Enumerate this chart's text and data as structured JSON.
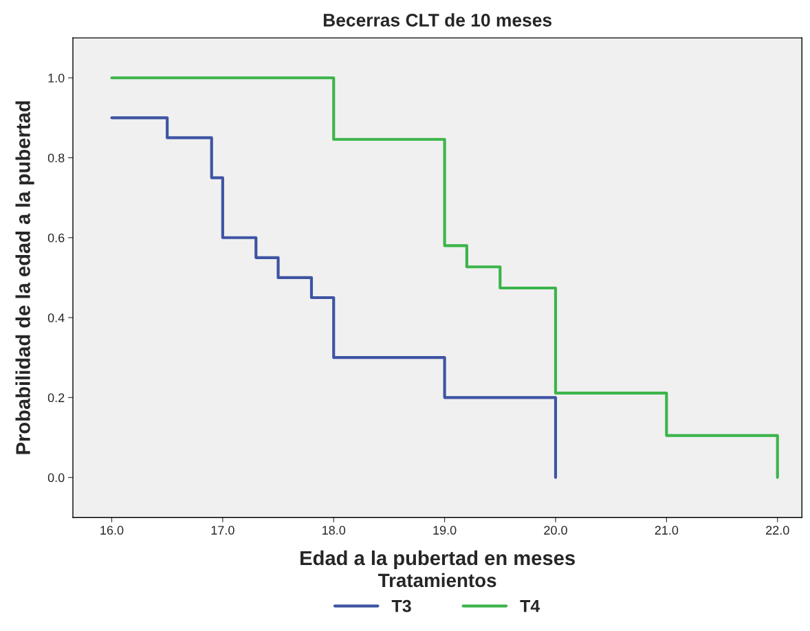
{
  "chart_data": {
    "type": "step",
    "title": "Becerras CLT de 10 meses",
    "xlabel": "Edad a la pubertad en meses",
    "ylabel": "Probabilidad de la edad a la pubertad",
    "legend_title": "Tratamientos",
    "xlim": [
      15.65,
      22.22
    ],
    "xticks": [
      {
        "value": 16,
        "label": "16.0"
      },
      {
        "value": 17,
        "label": "17.0"
      },
      {
        "value": 18,
        "label": "18.0"
      },
      {
        "value": 19,
        "label": "19.0"
      },
      {
        "value": 20,
        "label": "20.0"
      },
      {
        "value": 21,
        "label": "21.0"
      },
      {
        "value": 22,
        "label": "22.0"
      }
    ],
    "ylim": [
      -0.1,
      1.1
    ],
    "yticks": [
      {
        "value": 0,
        "label": "0.0"
      },
      {
        "value": 0.2,
        "label": "0.2"
      },
      {
        "value": 0.4,
        "label": "0.4"
      },
      {
        "value": 0.6,
        "label": "0.6"
      },
      {
        "value": 0.8,
        "label": "0.8"
      },
      {
        "value": 1,
        "label": "1.0"
      }
    ],
    "series": [
      {
        "name": "T3",
        "color": "#3e54a3",
        "x": [
          16,
          16.5,
          16.9,
          17,
          17.3,
          17.5,
          17.8,
          18,
          19,
          20
        ],
        "values": [
          0.9,
          0.85,
          0.75,
          0.6,
          0.55,
          0.5,
          0.45,
          0.3,
          0.2,
          0.0
        ]
      },
      {
        "name": "T4",
        "color": "#3cb44a",
        "x": [
          16,
          18,
          19,
          19.2,
          19.5,
          20,
          21,
          22
        ],
        "values": [
          1.0,
          0.846,
          0.58,
          0.527,
          0.474,
          0.211,
          0.105,
          0.0
        ]
      }
    ],
    "grid": false,
    "legend": "bottom",
    "marker": "none",
    "line_style": "solid"
  }
}
